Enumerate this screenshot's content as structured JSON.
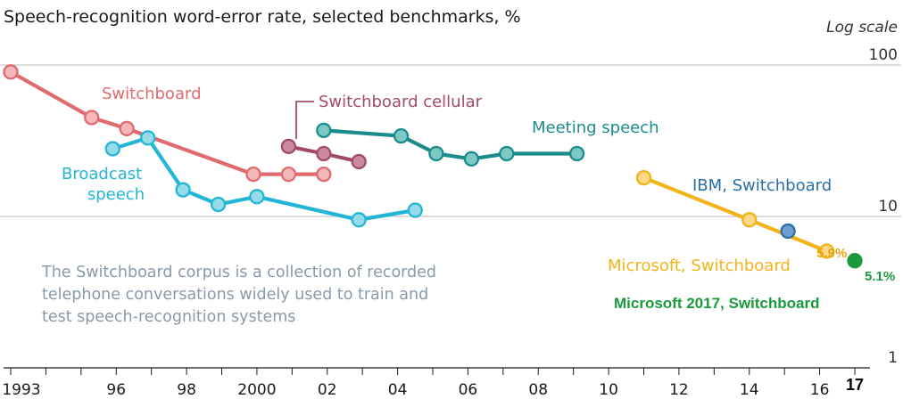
{
  "chart_data": {
    "type": "line",
    "title": "Speech-recognition word-error rate, selected benchmarks, %",
    "scale_note": "Log scale",
    "y_scale": "log",
    "ylim": [
      1,
      100
    ],
    "xlim": [
      1993,
      2017.2
    ],
    "y_ticks": [
      {
        "value": 100,
        "label": "100"
      },
      {
        "value": 10,
        "label": "10"
      },
      {
        "value": 1,
        "label": "1"
      }
    ],
    "x_ticks": [
      {
        "value": 1993,
        "label": "1993",
        "bold": false
      },
      {
        "value": 1996,
        "label": "96",
        "bold": false
      },
      {
        "value": 1998,
        "label": "98",
        "bold": false
      },
      {
        "value": 2000,
        "label": "2000",
        "bold": false
      },
      {
        "value": 2002,
        "label": "02",
        "bold": false
      },
      {
        "value": 2004,
        "label": "04",
        "bold": false
      },
      {
        "value": 2006,
        "label": "06",
        "bold": false
      },
      {
        "value": 2008,
        "label": "08",
        "bold": false
      },
      {
        "value": 2010,
        "label": "10",
        "bold": false
      },
      {
        "value": 2012,
        "label": "12",
        "bold": false
      },
      {
        "value": 2014,
        "label": "14",
        "bold": false
      },
      {
        "value": 2016,
        "label": "16",
        "bold": false
      },
      {
        "value": 2017,
        "label": "17",
        "bold": true
      }
    ],
    "grid": "horizontal",
    "series": [
      {
        "name": "Switchboard",
        "color": "#e06a6e",
        "fill": "#f4b8b8",
        "points": [
          [
            1993.0,
            90
          ],
          [
            1995.3,
            45
          ],
          [
            1996.3,
            38
          ],
          [
            1999.9,
            19
          ],
          [
            2000.9,
            19
          ],
          [
            2001.9,
            19
          ]
        ]
      },
      {
        "name": "Switchboard cellular",
        "color": "#a24a6e",
        "fill": "#c98a9e",
        "points": [
          [
            2000.9,
            29
          ],
          [
            2001.9,
            26
          ],
          [
            2002.9,
            23
          ]
        ]
      },
      {
        "name": "Meeting speech",
        "color": "#1a8c8c",
        "fill": "#7ec8c6",
        "points": [
          [
            2001.9,
            37
          ],
          [
            2004.1,
            34
          ],
          [
            2005.1,
            26
          ],
          [
            2006.1,
            24
          ],
          [
            2007.1,
            26
          ],
          [
            2009.1,
            26
          ]
        ]
      },
      {
        "name": "Broadcast speech",
        "color": "#22b5d5",
        "fill": "#95dbe8",
        "points": [
          [
            1995.9,
            28
          ],
          [
            1996.9,
            33
          ],
          [
            1997.9,
            15
          ],
          [
            1998.9,
            12
          ],
          [
            2000.0,
            13.5
          ],
          [
            2002.9,
            9.5
          ],
          [
            2004.5,
            11
          ]
        ]
      },
      {
        "name": "Microsoft, Switchboard",
        "color": "#f2b318",
        "fill": "#fcd887",
        "points": [
          [
            2011.0,
            18
          ],
          [
            2014.0,
            9.5
          ],
          [
            2016.2,
            5.9
          ]
        ]
      },
      {
        "name": "IBM, Switchboard",
        "color": "#2a6fa8",
        "fill": "#6e9fd0",
        "points": [
          [
            2015.1,
            8
          ]
        ]
      },
      {
        "name": "Microsoft 2017, Switchboard",
        "color": "#1a9a3c",
        "fill": "#1a9a3c",
        "points": [
          [
            2017.0,
            5.1
          ]
        ]
      }
    ],
    "annotations": [
      {
        "text": "5.9%",
        "color": "#e8a410"
      },
      {
        "text": "5.1%",
        "color": "#1a9a3c"
      }
    ],
    "note_lines": [
      "The Switchboard corpus is a collection of recorded",
      "telephone conversations widely used to train and",
      "test speech-recognition systems"
    ]
  }
}
